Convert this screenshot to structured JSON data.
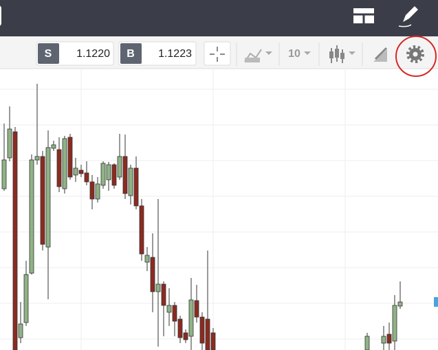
{
  "toolbar": {
    "sell_label": "S",
    "sell_price": "1.1220",
    "buy_label": "B",
    "buy_price": "1.1223",
    "timeframe": "10"
  },
  "chart_data": {
    "type": "candlestick",
    "up_color": "#8fb385",
    "down_color": "#8c2b20",
    "x": [
      0,
      1,
      2,
      3,
      4,
      5,
      6,
      7,
      8,
      9,
      10,
      11,
      12,
      13,
      14,
      15,
      16,
      17,
      18,
      19,
      20,
      21,
      22,
      23,
      24,
      25,
      26,
      27,
      28,
      29,
      30,
      31,
      32,
      33,
      34,
      35,
      36,
      37,
      38,
      66,
      69,
      70,
      71,
      72
    ],
    "open": [
      235,
      280,
      318,
      18,
      40,
      112,
      277,
      282,
      150,
      294,
      292,
      235,
      310,
      255,
      262,
      258,
      245,
      220,
      240,
      248,
      270,
      252,
      282,
      225,
      265,
      210,
      128,
      135,
      85,
      96,
      55,
      65,
      45,
      25,
      20,
      72,
      48,
      45,
      25,
      0,
      10,
      23,
      13,
      64
    ],
    "high": [
      330,
      355,
      325,
      70,
      130,
      285,
      388,
      290,
      320,
      305,
      310,
      312,
      315,
      280,
      270,
      275,
      255,
      252,
      275,
      274,
      272,
      315,
      314,
      270,
      282,
      220,
      150,
      170,
      220,
      100,
      90,
      70,
      50,
      30,
      105,
      95,
      55,
      145,
      32,
      25,
      35,
      40,
      80,
      100
    ],
    "low": [
      232,
      275,
      0,
      10,
      35,
      110,
      270,
      145,
      74,
      290,
      230,
      228,
      248,
      245,
      252,
      240,
      205,
      215,
      235,
      232,
      235,
      248,
      220,
      212,
      205,
      130,
      115,
      55,
      5,
      20,
      35,
      20,
      10,
      10,
      0,
      40,
      0,
      0,
      0,
      0,
      0,
      0,
      0,
      60
    ],
    "close": [
      277,
      322,
      0,
      38,
      110,
      277,
      282,
      154,
      295,
      299,
      238,
      308,
      252,
      265,
      257,
      245,
      220,
      242,
      272,
      270,
      240,
      282,
      228,
      265,
      210,
      140,
      138,
      85,
      96,
      65,
      65,
      42,
      18,
      15,
      73,
      48,
      10,
      0,
      0,
      20,
      20,
      10,
      65,
      70
    ],
    "xlim": [
      -0.75,
      78.875
    ],
    "ylim": [
      0,
      410
    ]
  }
}
